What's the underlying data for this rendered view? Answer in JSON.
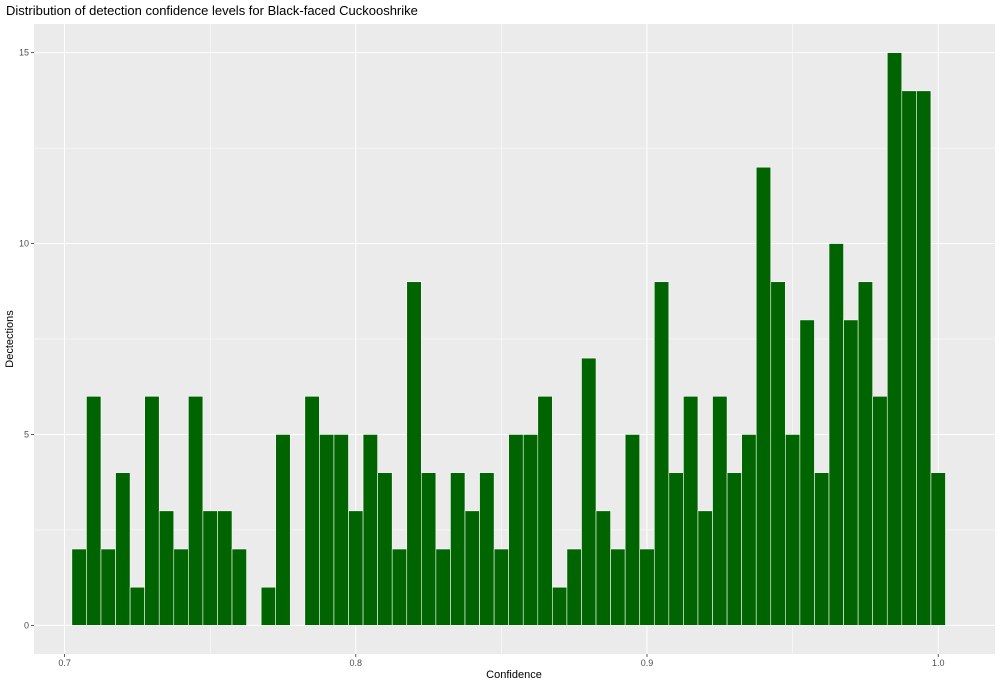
{
  "chart_data": {
    "type": "bar",
    "title": "Distribution of detection confidence levels for Black-faced Cuckooshrike",
    "xlabel": "Confidence",
    "ylabel": "Dectections",
    "x_ticks": [
      0.7,
      0.8,
      0.9,
      1.0
    ],
    "x_tick_labels": [
      "0.7",
      "0.8",
      "0.9",
      "1.0"
    ],
    "y_ticks": [
      0,
      5,
      10,
      15
    ],
    "y_tick_labels": [
      "0",
      "5",
      "10",
      "15"
    ],
    "xlim": [
      0.6895,
      1.0195
    ],
    "ylim": [
      -0.75,
      15.75
    ],
    "bin_width": 0.005,
    "grid": true,
    "colors": {
      "bar_fill": "#006400",
      "bar_stroke": "#ffffff",
      "panel": "#ebebeb",
      "grid": "#ffffff"
    },
    "bins": [
      0.705,
      0.71,
      0.715,
      0.72,
      0.725,
      0.73,
      0.735,
      0.74,
      0.745,
      0.75,
      0.755,
      0.76,
      0.765,
      0.77,
      0.775,
      0.78,
      0.785,
      0.79,
      0.795,
      0.8,
      0.805,
      0.81,
      0.815,
      0.82,
      0.825,
      0.83,
      0.835,
      0.84,
      0.845,
      0.85,
      0.855,
      0.86,
      0.865,
      0.87,
      0.875,
      0.88,
      0.885,
      0.89,
      0.895,
      0.9,
      0.905,
      0.91,
      0.915,
      0.92,
      0.925,
      0.93,
      0.935,
      0.94,
      0.945,
      0.95,
      0.955,
      0.96,
      0.965,
      0.97,
      0.975,
      0.98,
      0.985,
      0.99,
      0.995,
      1.0
    ],
    "values": [
      2,
      6,
      2,
      4,
      1,
      6,
      3,
      2,
      6,
      3,
      3,
      2,
      0,
      1,
      5,
      0,
      6,
      5,
      5,
      3,
      5,
      4,
      2,
      9,
      4,
      2,
      4,
      3,
      4,
      2,
      5,
      5,
      6,
      1,
      2,
      7,
      3,
      2,
      5,
      2,
      9,
      4,
      6,
      3,
      6,
      4,
      5,
      12,
      9,
      5,
      8,
      4,
      10,
      8,
      9,
      6,
      15,
      14,
      14,
      4
    ]
  }
}
